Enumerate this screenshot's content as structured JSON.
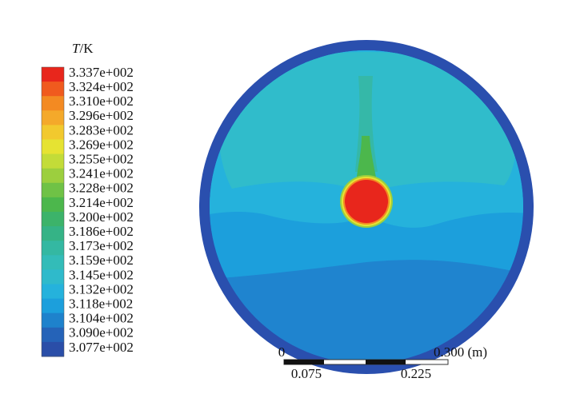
{
  "legend": {
    "title_symbol": "T",
    "title_unit": "/K",
    "entries": [
      {
        "label": "3.337e+002",
        "color": "#e8261c"
      },
      {
        "label": "3.324e+002",
        "color": "#f05a1e"
      },
      {
        "label": "3.310e+002",
        "color": "#f38a22"
      },
      {
        "label": "3.296e+002",
        "color": "#f4a92a"
      },
      {
        "label": "3.283e+002",
        "color": "#f2c92e"
      },
      {
        "label": "3.269e+002",
        "color": "#e6e332"
      },
      {
        "label": "3.255e+002",
        "color": "#c3dc38"
      },
      {
        "label": "3.241e+002",
        "color": "#9ccf3e"
      },
      {
        "label": "3.228e+002",
        "color": "#6fc246"
      },
      {
        "label": "3.214e+002",
        "color": "#4cb74c"
      },
      {
        "label": "3.200e+002",
        "color": "#3cb36a"
      },
      {
        "label": "3.186e+002",
        "color": "#35b386"
      },
      {
        "label": "3.173e+002",
        "color": "#34b8a2"
      },
      {
        "label": "3.159e+002",
        "color": "#33bcb8"
      },
      {
        "label": "3.145e+002",
        "color": "#2fbacb"
      },
      {
        "label": "3.132e+002",
        "color": "#25b2dc"
      },
      {
        "label": "3.118e+002",
        "color": "#1c9fdc"
      },
      {
        "label": "3.104e+002",
        "color": "#1e82cc"
      },
      {
        "label": "3.090e+002",
        "color": "#2563b8"
      },
      {
        "label": "3.077e+002",
        "color": "#2a4ea8"
      }
    ]
  },
  "scale_bar": {
    "start": "0",
    "end": "0.300 (m)",
    "quarter": "0.075",
    "three_quarter": "0.225"
  }
}
